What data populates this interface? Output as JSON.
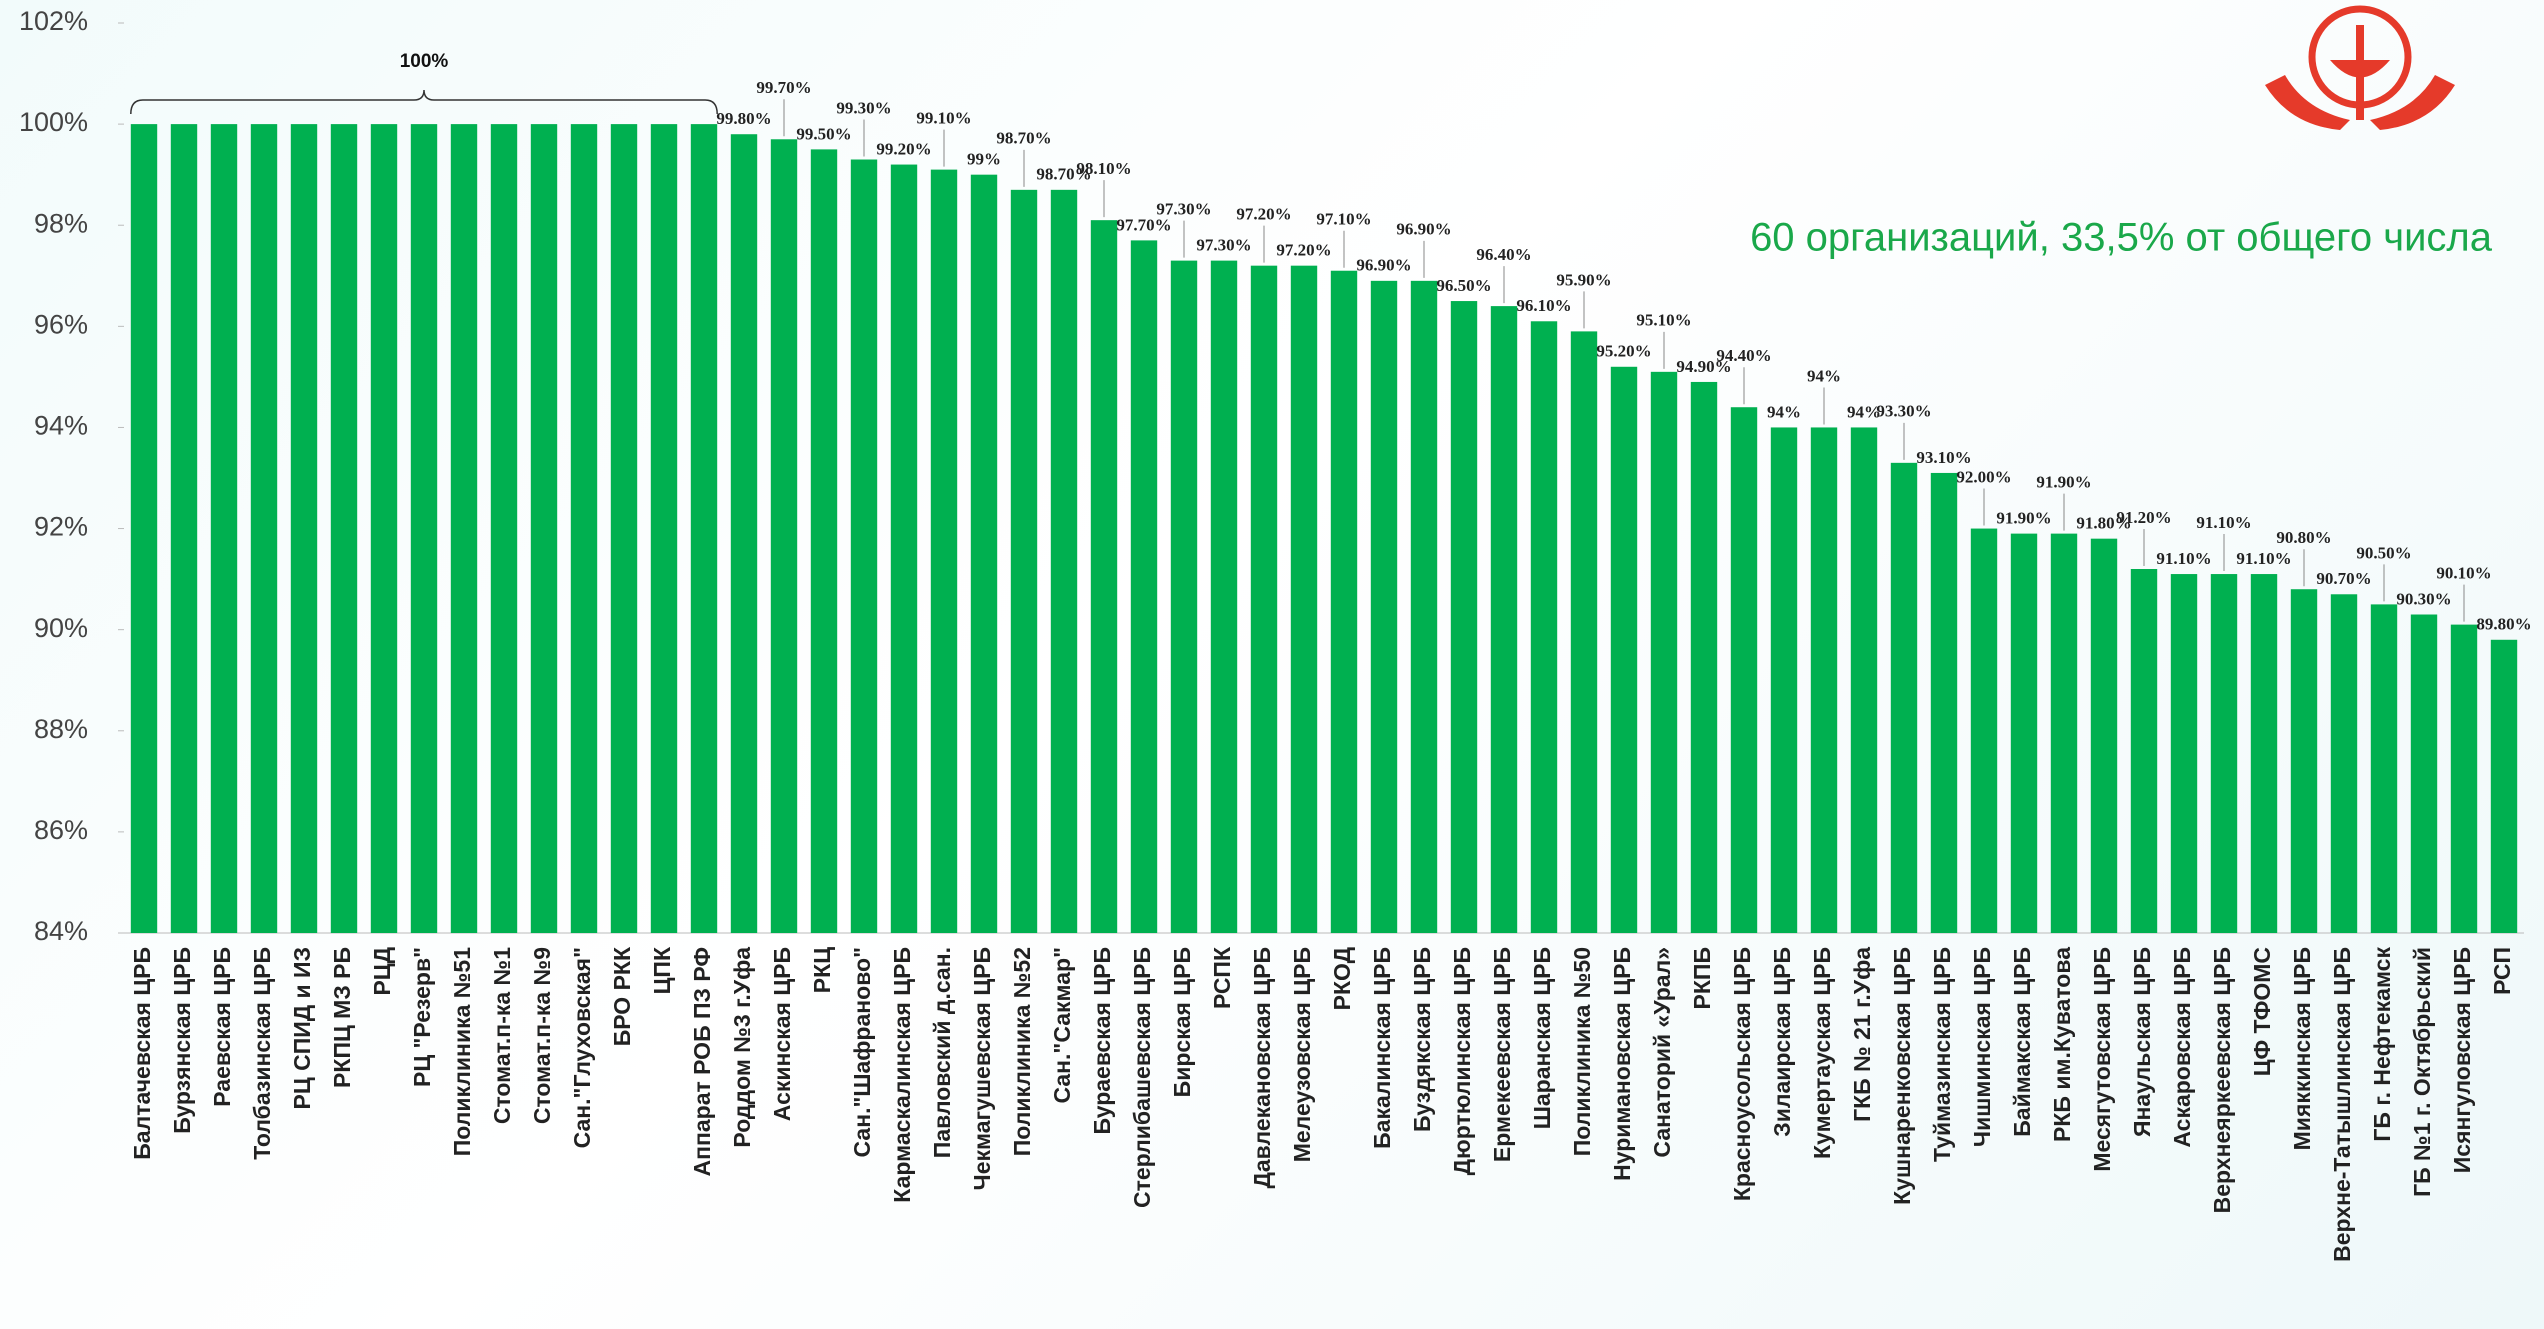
{
  "chart_data": {
    "type": "bar",
    "categories": [
      "Балтачевская ЦРБ",
      "Бурзянская ЦРБ",
      "Раевская ЦРБ",
      "Толбазинская ЦРБ",
      "РЦ СПИД и ИЗ",
      "РКПЦ МЗ РБ",
      "РЦД",
      "РЦ \"Резерв\"",
      "Поликлиника №51",
      "Стомат.п-ка №1",
      "Стомат.п-ка №9",
      "Сан.\"Глуховская\"",
      "БРО РКК",
      "ЦПК",
      "Аппарат РОБ ПЗ РФ",
      "Роддом №3 г.Уфа",
      "Аскинская ЦРБ",
      "РКЦ",
      "Сан.\"Шафраново\"",
      "Кармаскалинская ЦРБ",
      "Павловский д.сан.",
      "Чекмагушевская ЦРБ",
      "Поликлиника №52",
      "Сан.\"Сакмар\"",
      "Бураевская ЦРБ",
      "Стерлибашевская ЦРБ",
      "Бирская ЦРБ",
      "РСПК",
      "Давлекановская ЦРБ",
      "Мелеузовская ЦРБ",
      "РКОД",
      "Бакалинская ЦРБ",
      "Буздякская ЦРБ",
      "Дюртюлинская ЦРБ",
      "Ермекеевская ЦРБ",
      "Шаранская ЦРБ",
      "Поликлиника №50",
      "Нуримановская ЦРБ",
      "Санаторий «Урал»",
      "РКПБ",
      "Красноусольская ЦРБ",
      "Зилаирская ЦРБ",
      "Кумертауская ЦРБ",
      "ГКБ № 21 г.Уфа",
      "Кушнаренковская ЦРБ",
      "Туймазинская ЦРБ",
      "Чишминская ЦРБ",
      "Баймакская ЦРБ",
      "РКБ им.Куватова",
      "Месягутовская ЦРБ",
      "Янаульская ЦРБ",
      "Аскаровская ЦРБ",
      "Верхнеяркеевская ЦРБ",
      "ЦФ ТФОМС",
      "Мияккинская ЦРБ",
      "Верхне-Татышлинская ЦРБ",
      "ГБ г. Нефтекамск",
      "ГБ №1 г. Октябрьский",
      "Исянгуловская ЦРБ",
      "РСП"
    ],
    "values": [
      100,
      100,
      100,
      100,
      100,
      100,
      100,
      100,
      100,
      100,
      100,
      100,
      100,
      100,
      100,
      99.8,
      99.7,
      99.5,
      99.3,
      99.2,
      99.1,
      99,
      98.7,
      98.7,
      98.1,
      97.7,
      97.3,
      97.3,
      97.2,
      97.2,
      97.1,
      96.9,
      96.9,
      96.5,
      96.4,
      96.1,
      95.9,
      95.2,
      95.1,
      94.9,
      94.4,
      94,
      94,
      94,
      93.3,
      93.1,
      92,
      91.9,
      91.9,
      91.8,
      91.2,
      91.1,
      91.1,
      91.1,
      90.8,
      90.7,
      90.5,
      90.3,
      90.1,
      89.8
    ],
    "value_labels": [
      null,
      null,
      null,
      null,
      null,
      null,
      null,
      null,
      null,
      null,
      null,
      null,
      null,
      null,
      null,
      "99.80%",
      "99.70%",
      "99.50%",
      "99.30%",
      "99.20%",
      "99.10%",
      "99%",
      "98.70%",
      "98.70%",
      "98.10%",
      "97.70%",
      "97.30%",
      "97.30%",
      "97.20%",
      "97.20%",
      "97.10%",
      "96.90%",
      "96.90%",
      "96.50%",
      "96.40%",
      "96.10%",
      "95.90%",
      "95.20%",
      "95.10%",
      "94.90%",
      "94.40%",
      "94%",
      "94%",
      "94%",
      "93.30%",
      "93.10%",
      "92.00%",
      "91.90%",
      "91.90%",
      "91.80%",
      "91.20%",
      "91.10%",
      "91.10%",
      "91.10%",
      "90.80%",
      "90.70%",
      "90.50%",
      "90.30%",
      "90.10%",
      "89.80%"
    ],
    "color": "#00b050",
    "ylim": [
      84,
      102
    ],
    "yticks": [
      {
        "value": 84,
        "label": "84%"
      },
      {
        "value": 86,
        "label": "86%"
      },
      {
        "value": 88,
        "label": "88%"
      },
      {
        "value": 90,
        "label": "90%"
      },
      {
        "value": 92,
        "label": "92%"
      },
      {
        "value": 94,
        "label": "94%"
      },
      {
        "value": 96,
        "label": "96%"
      },
      {
        "value": 98,
        "label": "98%"
      },
      {
        "value": 100,
        "label": "100%"
      },
      {
        "value": 102,
        "label": "102%"
      }
    ],
    "annotations": [
      "100%",
      "60 организаций, 33,5% от общего числа"
    ]
  }
}
